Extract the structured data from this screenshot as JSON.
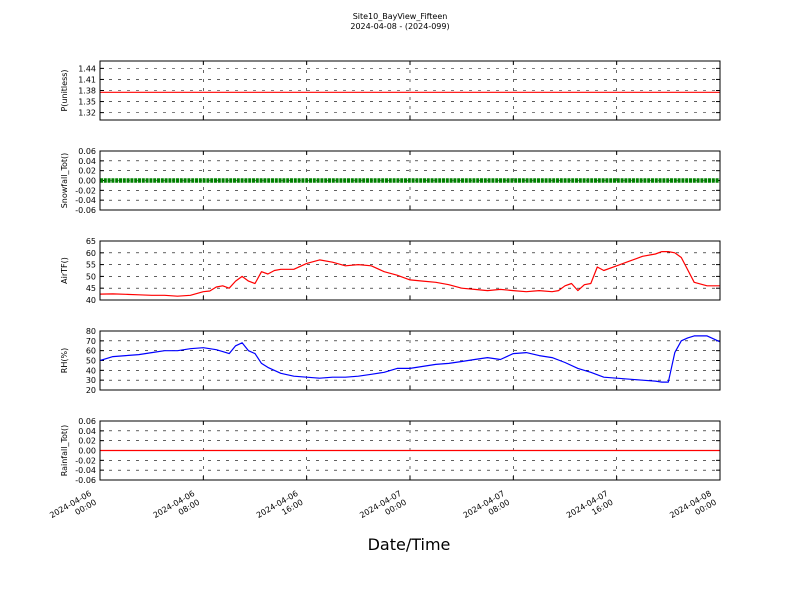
{
  "figure": {
    "title_line1": "Site10_BayView_Fifteen",
    "title_line2": "2024-04-08 - (2024-099)",
    "xlabel": "Date/Time"
  },
  "chart_data": {
    "type": "line",
    "x_range": [
      "2024-04-06 00:00",
      "2024-04-08 00:00"
    ],
    "x_ticks": [
      {
        "line1": "2024-04-06",
        "line2": "00:00",
        "hours": 0
      },
      {
        "line1": "2024-04-06",
        "line2": "08:00",
        "hours": 8
      },
      {
        "line1": "2024-04-06",
        "line2": "16:00",
        "hours": 16
      },
      {
        "line1": "2024-04-07",
        "line2": "00:00",
        "hours": 24
      },
      {
        "line1": "2024-04-07",
        "line2": "08:00",
        "hours": 32
      },
      {
        "line1": "2024-04-07",
        "line2": "16:00",
        "hours": 40
      },
      {
        "line1": "2024-04-08",
        "line2": "00:00",
        "hours": 48
      }
    ],
    "grid": true,
    "panels": [
      {
        "ylabel": "P(unitless)",
        "ylim": [
          1.3,
          1.46
        ],
        "yticks": [
          "1.32",
          "1.35",
          "1.38",
          "1.41",
          "1.44"
        ],
        "ytick_values": [
          1.32,
          1.35,
          1.38,
          1.41,
          1.44
        ],
        "color": "#ff0000",
        "style": "line",
        "series": {
          "x": [
            0,
            48
          ],
          "y": [
            1.375,
            1.375
          ]
        }
      },
      {
        "ylabel": "Snowfall_Tot()",
        "ylim": [
          -0.06,
          0.06
        ],
        "yticks": [
          "0.06",
          "0.04",
          "0.02",
          "0.00",
          "-0.02",
          "-0.04",
          "-0.06"
        ],
        "ytick_values": [
          0.06,
          0.04,
          0.02,
          0.0,
          -0.02,
          -0.04,
          -0.06
        ],
        "color": "#008000",
        "style": "dots",
        "series": {
          "x": [
            0,
            48
          ],
          "y": [
            0,
            0
          ]
        }
      },
      {
        "ylabel": "AirTF()",
        "ylim": [
          40,
          65
        ],
        "yticks": [
          "65",
          "60",
          "55",
          "50",
          "45",
          "40"
        ],
        "ytick_values": [
          65,
          60,
          55,
          50,
          45,
          40
        ],
        "color": "#ff0000",
        "style": "line",
        "series": {
          "x": [
            0,
            1,
            2,
            3,
            4,
            5,
            6,
            7,
            8,
            8.5,
            9,
            9.5,
            10,
            10.5,
            11,
            11.5,
            12,
            12.5,
            13,
            13.5,
            14,
            15,
            16,
            17,
            18,
            19,
            20,
            21,
            22,
            23,
            24,
            25,
            26,
            27,
            28,
            29,
            30,
            31,
            32,
            33,
            34,
            35,
            35.5,
            36,
            36.5,
            37,
            37.5,
            38,
            38.5,
            39,
            40,
            41,
            42,
            43,
            43.5,
            44,
            44.5,
            45,
            46,
            47,
            48
          ],
          "y": [
            42.5,
            42.6,
            42.4,
            42.2,
            42,
            42,
            41.6,
            42,
            43.5,
            43.8,
            45.5,
            46,
            45,
            48,
            50,
            48,
            47,
            52,
            51,
            52.5,
            53,
            53,
            55.5,
            57,
            56,
            54.5,
            55,
            54.5,
            52,
            50.5,
            48.5,
            48,
            47.5,
            46.5,
            45,
            44.5,
            44,
            44.5,
            44,
            43.5,
            44,
            43.5,
            44,
            46,
            47,
            44,
            46.5,
            47,
            54,
            52.5,
            54.5,
            56.5,
            58.5,
            59.5,
            60.5,
            60.5,
            60,
            58,
            47.5,
            46,
            46
          ]
        }
      },
      {
        "ylabel": "RH(%)",
        "ylim": [
          20,
          80
        ],
        "yticks": [
          "80",
          "70",
          "60",
          "50",
          "40",
          "30",
          "20"
        ],
        "ytick_values": [
          80,
          70,
          60,
          50,
          40,
          30,
          20
        ],
        "color": "#0000ff",
        "style": "line",
        "series": {
          "x": [
            0,
            1,
            2,
            3,
            4,
            5,
            6,
            7,
            8,
            9,
            9.5,
            10,
            10.5,
            11,
            11.5,
            12,
            12.5,
            13,
            14,
            15,
            16,
            17,
            18,
            19,
            20,
            21,
            22,
            23,
            24,
            25,
            26,
            27,
            28,
            29,
            30,
            31,
            32,
            33,
            34,
            35,
            36,
            37,
            38,
            39,
            40,
            41,
            42,
            43,
            43.5,
            44,
            44.5,
            45,
            45.5,
            46,
            46.5,
            47,
            48
          ],
          "y": [
            50,
            54,
            55,
            56,
            58,
            60,
            60,
            62,
            63,
            61,
            59,
            57,
            65,
            68,
            60,
            57,
            47,
            43,
            37,
            34,
            33,
            32,
            33,
            33,
            34,
            36,
            38,
            42,
            42,
            44,
            46,
            47,
            49,
            51,
            53,
            51,
            57,
            58,
            55,
            53,
            48,
            42,
            38,
            33,
            32,
            31,
            30,
            29,
            28,
            28,
            58,
            70,
            73,
            75,
            75,
            75,
            69
          ]
        }
      },
      {
        "ylabel": "Rainfall_Tot()",
        "ylim": [
          -0.06,
          0.06
        ],
        "yticks": [
          "0.06",
          "0.04",
          "0.02",
          "0.00",
          "-0.02",
          "-0.04",
          "-0.06"
        ],
        "ytick_values": [
          0.06,
          0.04,
          0.02,
          0.0,
          -0.02,
          -0.04,
          -0.06
        ],
        "color": "#ff0000",
        "style": "line",
        "series": {
          "x": [
            0,
            48
          ],
          "y": [
            0,
            0
          ]
        }
      }
    ]
  }
}
